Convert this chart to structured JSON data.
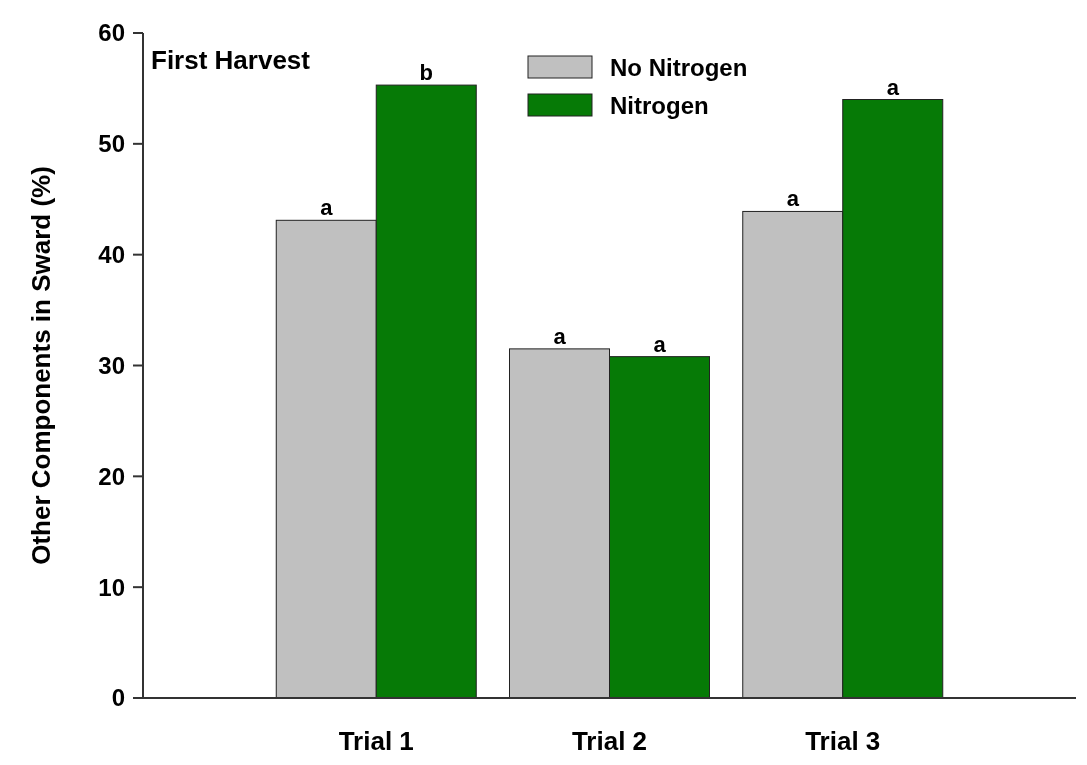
{
  "chart_data": {
    "type": "bar",
    "title": "First Harvest",
    "ylabel": "Other Components in Sward (%)",
    "categories": [
      "Trial 1",
      "Trial 2",
      "Trial 3"
    ],
    "series": [
      {
        "name": "No Nitrogen",
        "color": "#c0c0c0",
        "values": [
          43.1,
          31.5,
          43.9
        ],
        "value_labels": [
          "a",
          "a",
          "a"
        ]
      },
      {
        "name": "Nitrogen",
        "color": "#067a06",
        "values": [
          55.3,
          30.8,
          54.0
        ],
        "value_labels": [
          "b",
          "a",
          "a"
        ]
      }
    ],
    "ylim": [
      0,
      60
    ],
    "yticks": [
      0,
      10,
      20,
      30,
      40,
      50,
      60
    ],
    "legend": "top"
  }
}
